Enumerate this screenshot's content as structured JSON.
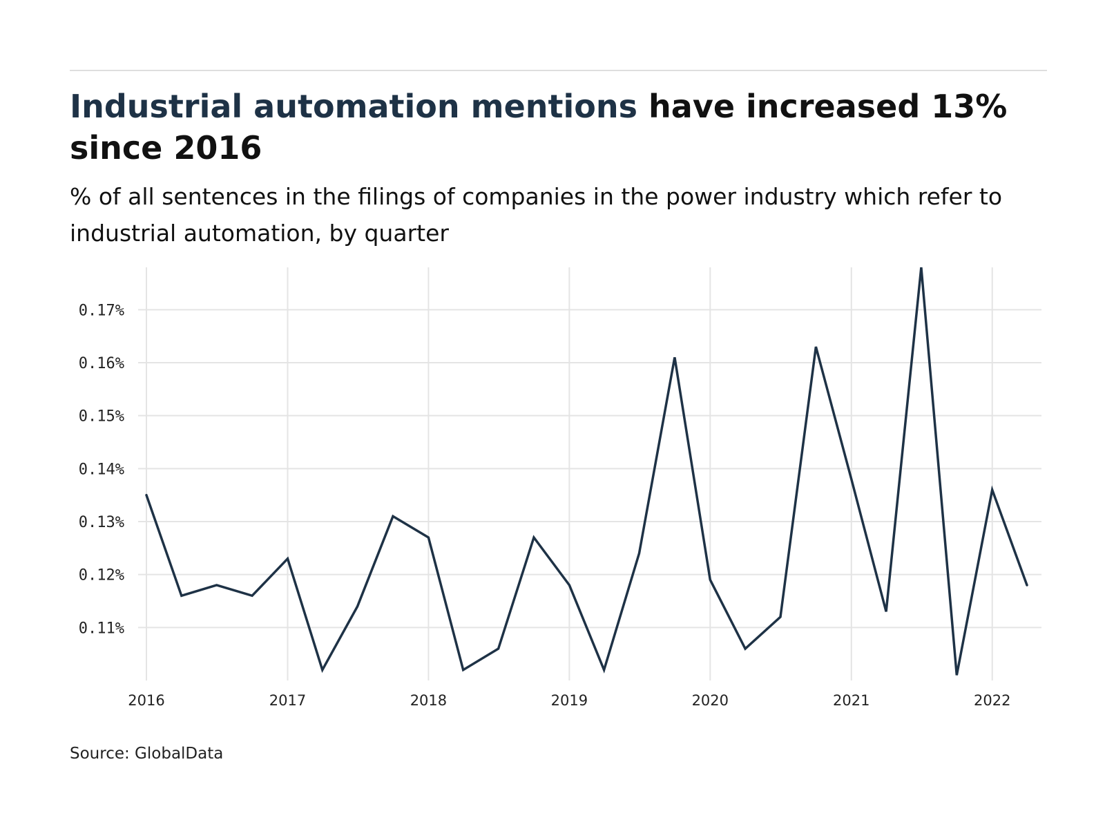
{
  "title": {
    "highlight": "Industrial automation mentions",
    "rest": " have increased 13% since 2016"
  },
  "subtitle": "% of all sentences in the filings of companies in the power industry which refer to industrial automation, by quarter",
  "source": "Source: GlobalData",
  "colors": {
    "line": "#1e3246",
    "highlight": "#1e3246",
    "grid": "#e4e4e4"
  },
  "chart_data": {
    "type": "line",
    "title": "Industrial automation mentions have increased 13% since 2016",
    "subtitle": "% of all sentences in the filings of companies in the power industry which refer to industrial automation, by quarter",
    "x_ticks": [
      "2016",
      "2017",
      "2018",
      "2019",
      "2020",
      "2021",
      "2022"
    ],
    "y_ticks": [
      0.11,
      0.12,
      0.13,
      0.14,
      0.15,
      0.16,
      0.17
    ],
    "y_tick_labels": [
      "0.11%",
      "0.12%",
      "0.13%",
      "0.14%",
      "0.15%",
      "0.16%",
      "0.17%"
    ],
    "xlim": [
      "2016-01-01",
      "2022-04-01"
    ],
    "ylim": [
      0.1,
      0.178
    ],
    "grid": true,
    "series": [
      {
        "x": [
          "2016-01-01",
          "2016-04-01",
          "2016-07-01",
          "2016-10-01",
          "2017-01-01",
          "2017-04-01",
          "2017-07-01",
          "2017-10-01",
          "2018-01-01",
          "2018-04-01",
          "2018-07-01",
          "2018-10-01",
          "2019-01-01",
          "2019-04-01",
          "2019-07-01",
          "2019-10-01",
          "2020-01-01",
          "2020-04-01",
          "2020-07-01",
          "2020-10-01",
          "2021-01-01",
          "2021-04-01",
          "2021-07-01",
          "2021-10-01",
          "2022-01-01",
          "2022-04-01"
        ],
        "values": [
          0.135,
          0.116,
          0.118,
          0.116,
          0.123,
          0.102,
          0.114,
          0.131,
          0.127,
          0.102,
          0.106,
          0.127,
          0.118,
          0.102,
          0.124,
          0.161,
          0.119,
          0.106,
          0.112,
          0.163,
          0.138,
          0.113,
          0.178,
          0.101,
          0.136,
          0.118
        ]
      }
    ],
    "source": "Source: GlobalData"
  }
}
